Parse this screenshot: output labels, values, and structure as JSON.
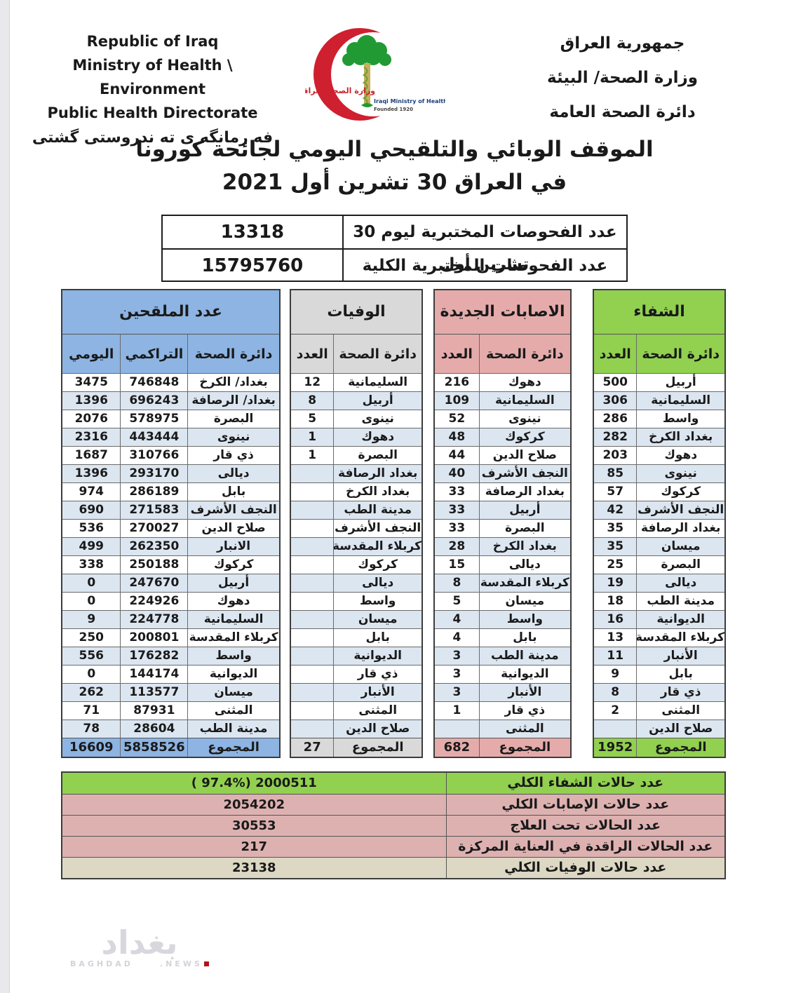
{
  "header": {
    "english_lines": [
      "Republic of Iraq",
      "Ministry of Health \\ Environment",
      "Public Health Directorate"
    ],
    "kurdish": "فه رمانگه ی ته ندروستی گشتی",
    "arabic_lines": [
      "جمهورية العراق",
      "وزارة الصحة/ البيئة",
      "دائرة الصحة العامة"
    ],
    "logo": {
      "arabic": "وزارة الصحة العراقية",
      "english": "Iraqi Ministry of Health",
      "founded": "Founded 1920"
    }
  },
  "title": {
    "line1": "الموقف الوبائي والتلقيحي اليومي لجائحة كورونا",
    "line2": "في العراق 30  تشرين أول 2021"
  },
  "tests": {
    "rows": [
      {
        "label": "عدد الفحوصات المختبرية  ليوم 30 تشرين أول",
        "value": "13318"
      },
      {
        "label": "عدد الفحوصات المختبرية الكلية",
        "value": "15795760"
      }
    ]
  },
  "tables": {
    "recovered": {
      "title": "الشفاء",
      "col_name": "دائرة الصحة",
      "col_count": "العدد",
      "rows": [
        [
          "أربيل",
          "500"
        ],
        [
          "السليمانية",
          "306"
        ],
        [
          "واسط",
          "286"
        ],
        [
          "بغداد الكرخ",
          "282"
        ],
        [
          "دهوك",
          "203"
        ],
        [
          "نينوى",
          "85"
        ],
        [
          "كركوك",
          "57"
        ],
        [
          "النجف الأشرف",
          "42"
        ],
        [
          "بغداد الرصافة",
          "35"
        ],
        [
          "ميسان",
          "35"
        ],
        [
          "البصرة",
          "25"
        ],
        [
          "ديالى",
          "19"
        ],
        [
          "مدينة الطب",
          "18"
        ],
        [
          "الديوانية",
          "16"
        ],
        [
          "كربلاء المقدسة",
          "13"
        ],
        [
          "الأنبار",
          "11"
        ],
        [
          "بابل",
          "9"
        ],
        [
          "ذي قار",
          "8"
        ],
        [
          "المثنى",
          "2"
        ],
        [
          "صلاح الدين",
          ""
        ]
      ],
      "total_label": "المجموع",
      "total": "1952",
      "accent": "#92d050"
    },
    "new_cases": {
      "title": "الاصابات الجديدة",
      "col_name": "دائرة الصحة",
      "col_count": "العدد",
      "rows": [
        [
          "دهوك",
          "216"
        ],
        [
          "السليمانية",
          "109"
        ],
        [
          "نينوى",
          "52"
        ],
        [
          "كركوك",
          "48"
        ],
        [
          "صلاح الدين",
          "44"
        ],
        [
          "النجف الأشرف",
          "40"
        ],
        [
          "بغداد الرصافة",
          "33"
        ],
        [
          "أربيل",
          "33"
        ],
        [
          "البصرة",
          "33"
        ],
        [
          "بغداد الكرخ",
          "28"
        ],
        [
          "ديالى",
          "15"
        ],
        [
          "كربلاء المقدسة",
          "8"
        ],
        [
          "ميسان",
          "5"
        ],
        [
          "واسط",
          "4"
        ],
        [
          "بابل",
          "4"
        ],
        [
          "مدينة الطب",
          "3"
        ],
        [
          "الديوانية",
          "3"
        ],
        [
          "الأنبار",
          "3"
        ],
        [
          "ذي قار",
          "1"
        ],
        [
          "المثنى",
          ""
        ]
      ],
      "total_label": "المجموع",
      "total": "682",
      "accent": "#e5abab"
    },
    "deaths": {
      "title": "الوفيات",
      "col_name": "دائرة الصحة",
      "col_count": "العدد",
      "rows": [
        [
          "السليمانية",
          "12"
        ],
        [
          "أربيل",
          "8"
        ],
        [
          "نينوى",
          "5"
        ],
        [
          "دهوك",
          "1"
        ],
        [
          "البصرة",
          "1"
        ],
        [
          "بغداد الرصافة",
          ""
        ],
        [
          "بغداد الكرخ",
          ""
        ],
        [
          "مدينة الطب",
          ""
        ],
        [
          "النجف الأشرف",
          ""
        ],
        [
          "كربلاء المقدسة",
          ""
        ],
        [
          "كركوك",
          ""
        ],
        [
          "ديالى",
          ""
        ],
        [
          "واسط",
          ""
        ],
        [
          "ميسان",
          ""
        ],
        [
          "بابل",
          ""
        ],
        [
          "الديوانية",
          ""
        ],
        [
          "ذي قار",
          ""
        ],
        [
          "الأنبار",
          ""
        ],
        [
          "المثنى",
          ""
        ],
        [
          "صلاح الدين",
          ""
        ]
      ],
      "total_label": "المجموع",
      "total": "27",
      "accent": "#d9d9d9"
    },
    "vaccinated": {
      "title": "عدد الملقحين",
      "col_name": "دائرة الصحة",
      "col_cumulative": "التراكمي",
      "col_daily": "اليومي",
      "rows": [
        [
          "بغداد/ الكرخ",
          "746848",
          "3475"
        ],
        [
          "بغداد/ الرصافة",
          "696243",
          "1396"
        ],
        [
          "البصرة",
          "578975",
          "2076"
        ],
        [
          "نينوى",
          "443444",
          "2316"
        ],
        [
          "ذي قار",
          "310766",
          "1687"
        ],
        [
          "ديالى",
          "293170",
          "1396"
        ],
        [
          "بابل",
          "286189",
          "974"
        ],
        [
          "النجف الأشرف",
          "271583",
          "690"
        ],
        [
          "صلاح الدين",
          "270027",
          "536"
        ],
        [
          "الانبار",
          "262350",
          "499"
        ],
        [
          "كركوك",
          "250188",
          "338"
        ],
        [
          "أربيل",
          "247670",
          "0"
        ],
        [
          "دهوك",
          "224926",
          "0"
        ],
        [
          "السليمانية",
          "224778",
          "9"
        ],
        [
          "كربلاء المقدسة",
          "200801",
          "250"
        ],
        [
          "واسط",
          "176282",
          "556"
        ],
        [
          "الديوانية",
          "144174",
          "0"
        ],
        [
          "ميسان",
          "113577",
          "262"
        ],
        [
          "المثنى",
          "87931",
          "71"
        ],
        [
          "مدينة الطب",
          "28604",
          "78"
        ]
      ],
      "total_label": "المجموع",
      "total_cumulative": "5858526",
      "total_daily": "16609",
      "accent": "#8db4e2"
    }
  },
  "summary": {
    "rows": [
      {
        "label": "عدد حالات الشفاء الكلي",
        "value": "( 97.4%)  2000511",
        "color": "#92d050"
      },
      {
        "label": "عدد حالات الإصابات الكلي",
        "value": "2054202",
        "color": "#deb1b1"
      },
      {
        "label": "عدد الحالات تحت العلاج",
        "value": "30553",
        "color": "#deb1b1"
      },
      {
        "label": "عدد الحالات الراقدة في العناية المركزة",
        "value": "217",
        "color": "#deb1b1"
      },
      {
        "label": "عدد حالات الوفيات الكلي",
        "value": "23138",
        "color": "#dcd8c3"
      }
    ]
  },
  "watermark": {
    "arabic": "بغداد",
    "latin1": "BAGHDAD",
    "latin2": ".NEWS"
  },
  "colors": {
    "recovered_accent": "#92d050",
    "new_cases_accent": "#e5abab",
    "deaths_accent": "#d9d9d9",
    "vaccinated_accent": "#8db4e2",
    "row_stripe": "#dce6f1",
    "summary_beige": "#dcd8c3",
    "crescent_red": "#cf2030",
    "palm_green": "#229a33"
  }
}
